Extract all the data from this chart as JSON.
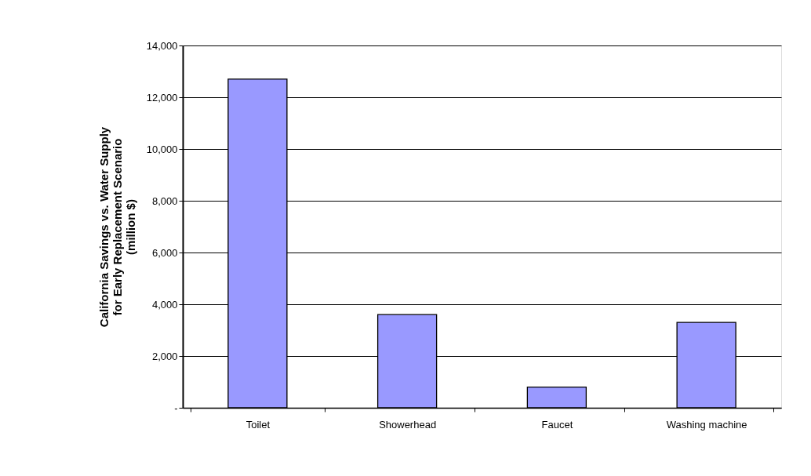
{
  "chart_data": {
    "type": "bar",
    "ylabel": "California Savings vs. Water Supply\nfor Early Replacement Scenario\n(million $)",
    "categories": [
      "Toilet",
      "Showerhead",
      "Faucet",
      "Washing machine"
    ],
    "values": [
      12700,
      3600,
      800,
      3300
    ],
    "color": "#9999ff",
    "ylim": [
      0,
      14000
    ],
    "yticks": [
      {
        "value": 0,
        "label": "-"
      },
      {
        "value": 2000,
        "label": "2,000"
      },
      {
        "value": 4000,
        "label": "4,000"
      },
      {
        "value": 6000,
        "label": "6,000"
      },
      {
        "value": 8000,
        "label": "8,000"
      },
      {
        "value": 10000,
        "label": "10,000"
      },
      {
        "value": 12000,
        "label": "12,000"
      },
      {
        "value": 14000,
        "label": "14,000"
      }
    ],
    "grid": "y"
  }
}
